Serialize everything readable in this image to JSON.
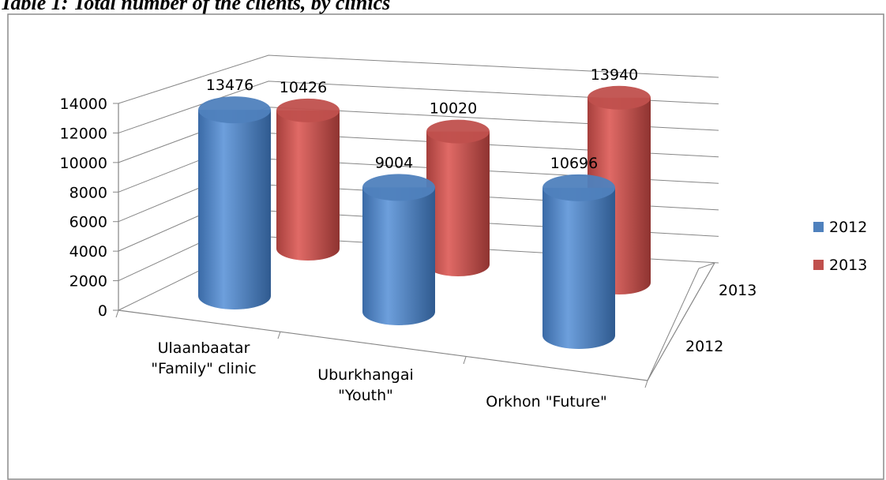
{
  "chart_data": {
    "type": "bar3d",
    "title": "Table 1: Total number of the clients, by clinics",
    "categories": [
      "Ulaanbaatar \"Family\" clinic",
      "Uburkhangai \"Youth\"",
      "Orkhon \"Future\""
    ],
    "series": [
      {
        "name": "2012",
        "color": "#4f81bd",
        "values": [
          13476,
          9004,
          10696
        ]
      },
      {
        "name": "2013",
        "color": "#c0504d",
        "values": [
          10426,
          10020,
          13940
        ]
      }
    ],
    "ylim": [
      0,
      14000
    ],
    "yticks": [
      0,
      2000,
      4000,
      6000,
      8000,
      10000,
      12000,
      14000
    ],
    "grid": true,
    "legend": "right"
  }
}
